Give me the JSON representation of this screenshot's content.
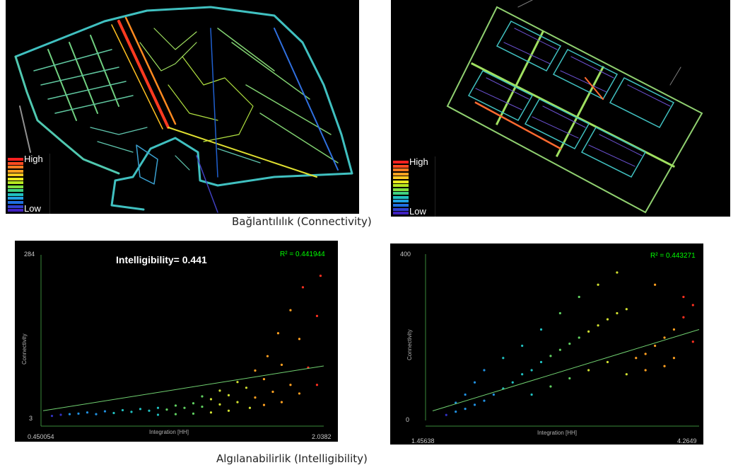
{
  "captions": {
    "connectivity": "Bağlantılılık (Connectivity)",
    "intelligibility": "Algılanabilirlik (Intelligibility)"
  },
  "legend": {
    "high": "High",
    "low": "Low",
    "colors": [
      "#ff2020",
      "#ff4a20",
      "#ff7a20",
      "#ffa020",
      "#ffc820",
      "#e8e820",
      "#b8e820",
      "#80e040",
      "#40d080",
      "#20c0c0",
      "#20a0e0",
      "#2070e0",
      "#3040d0",
      "#4020c0"
    ]
  },
  "maps": {
    "left": {
      "name": "organic-settlement-connectivity-map"
    },
    "right": {
      "name": "grid-settlement-connectivity-map"
    }
  },
  "chart_data": [
    {
      "type": "scatter",
      "title": "Intelligibility= 0.441",
      "r2_label": "R² = 0.441944",
      "xlabel": "Integration [HH]",
      "ylabel": "Connectivity",
      "xlim": [
        0.450054,
        2.0382
      ],
      "ylim": [
        3,
        284
      ],
      "x_tick_labels": [
        "0.450054",
        "2.0382"
      ],
      "y_tick_labels": [
        "3",
        "284"
      ],
      "trendline": {
        "x": [
          0.450054,
          2.0382
        ],
        "y": [
          15,
          93
        ]
      },
      "points": [
        [
          0.5,
          6
        ],
        [
          0.55,
          8
        ],
        [
          0.6,
          9
        ],
        [
          0.65,
          10
        ],
        [
          0.7,
          12
        ],
        [
          0.75,
          9
        ],
        [
          0.8,
          14
        ],
        [
          0.85,
          11
        ],
        [
          0.9,
          16
        ],
        [
          0.95,
          13
        ],
        [
          1.0,
          18
        ],
        [
          1.05,
          15
        ],
        [
          1.1,
          20
        ],
        [
          1.15,
          17
        ],
        [
          1.2,
          24
        ],
        [
          1.25,
          20
        ],
        [
          1.3,
          28
        ],
        [
          1.35,
          22
        ],
        [
          1.4,
          35
        ],
        [
          1.45,
          26
        ],
        [
          1.5,
          42
        ],
        [
          1.55,
          30
        ],
        [
          1.6,
          55
        ],
        [
          1.65,
          38
        ],
        [
          1.7,
          70
        ],
        [
          1.75,
          48
        ],
        [
          1.8,
          95
        ],
        [
          1.85,
          60
        ],
        [
          1.9,
          140
        ],
        [
          1.95,
          90
        ],
        [
          2.0,
          180
        ],
        [
          1.72,
          110
        ],
        [
          1.78,
          150
        ],
        [
          1.85,
          190
        ],
        [
          1.92,
          230
        ],
        [
          2.02,
          250
        ],
        [
          1.65,
          85
        ],
        [
          1.55,
          65
        ],
        [
          1.45,
          50
        ],
        [
          1.35,
          40
        ],
        [
          1.62,
          20
        ],
        [
          1.7,
          25
        ],
        [
          1.8,
          30
        ],
        [
          1.9,
          45
        ],
        [
          2.0,
          60
        ],
        [
          1.5,
          15
        ],
        [
          1.4,
          12
        ],
        [
          1.3,
          10
        ],
        [
          1.2,
          9
        ],
        [
          1.1,
          8
        ]
      ]
    },
    {
      "type": "scatter",
      "title": "",
      "r2_label": "R² = 0.443271",
      "xlabel": "Integration [HH]",
      "ylabel": "Connectivity",
      "xlim": [
        1.45638,
        4.2649
      ],
      "ylim": [
        0,
        400
      ],
      "x_tick_labels": [
        "1.45638",
        "4.2649"
      ],
      "y_tick_labels": [
        "0",
        "400"
      ],
      "trendline": {
        "x": [
          1.45638,
          4.2649
        ],
        "y": [
          20,
          220
        ]
      },
      "points": [
        [
          1.6,
          10
        ],
        [
          1.7,
          18
        ],
        [
          1.8,
          25
        ],
        [
          1.9,
          35
        ],
        [
          2.0,
          45
        ],
        [
          2.1,
          60
        ],
        [
          2.2,
          75
        ],
        [
          2.3,
          90
        ],
        [
          2.4,
          110
        ],
        [
          2.5,
          120
        ],
        [
          2.6,
          140
        ],
        [
          2.7,
          155
        ],
        [
          2.8,
          170
        ],
        [
          2.9,
          185
        ],
        [
          3.0,
          200
        ],
        [
          3.1,
          215
        ],
        [
          3.2,
          230
        ],
        [
          3.3,
          245
        ],
        [
          3.4,
          260
        ],
        [
          3.5,
          270
        ],
        [
          2.2,
          150
        ],
        [
          2.4,
          180
        ],
        [
          2.6,
          220
        ],
        [
          2.8,
          260
        ],
        [
          3.0,
          300
        ],
        [
          3.2,
          330
        ],
        [
          3.4,
          360
        ],
        [
          2.0,
          120
        ],
        [
          1.9,
          90
        ],
        [
          1.8,
          60
        ],
        [
          3.6,
          150
        ],
        [
          3.7,
          160
        ],
        [
          3.8,
          180
        ],
        [
          3.9,
          200
        ],
        [
          4.0,
          220
        ],
        [
          4.1,
          250
        ],
        [
          4.2,
          280
        ],
        [
          3.8,
          330
        ],
        [
          4.1,
          300
        ],
        [
          2.5,
          60
        ],
        [
          2.7,
          80
        ],
        [
          2.9,
          100
        ],
        [
          3.1,
          120
        ],
        [
          3.3,
          140
        ],
        [
          3.5,
          110
        ],
        [
          3.7,
          120
        ],
        [
          3.9,
          130
        ],
        [
          4.0,
          150
        ],
        [
          4.2,
          190
        ],
        [
          1.7,
          40
        ]
      ]
    }
  ]
}
